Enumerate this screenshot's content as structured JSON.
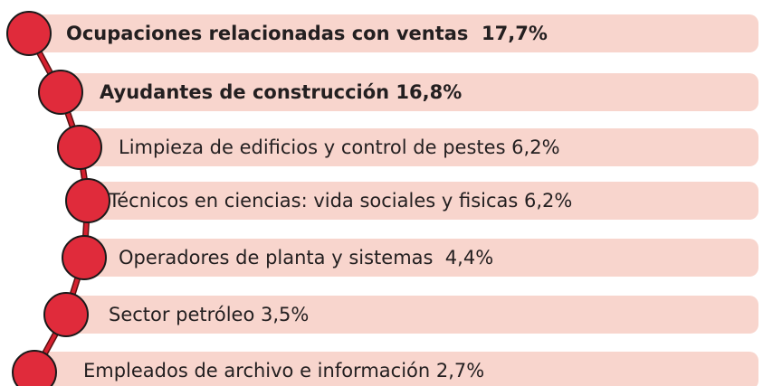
{
  "items": [
    {
      "label": "Ocupaciones relacionadas con ventas  17,7%"
    },
    {
      "label": "Ayudantes de construcción 16,8%"
    },
    {
      "label": "Limpieza de edificios y control de pestes 6,2%"
    },
    {
      "label": "Técnicos en ciencias: vida sociales y fisicas 6,2%"
    },
    {
      "label": "Operadores de planta y sistemas  4,4%"
    },
    {
      "label": "Sector petróleo 3,5%"
    },
    {
      "label": "Empleados de archivo e información 2,7%"
    }
  ]
}
